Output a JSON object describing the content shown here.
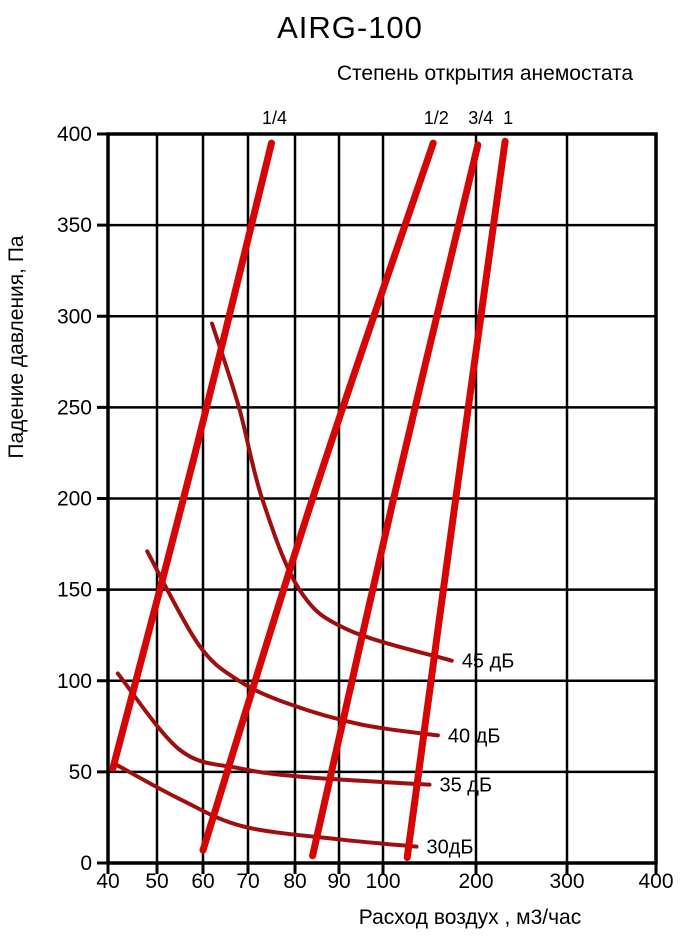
{
  "header": {
    "title": "AIRG-100",
    "subtitle": "Степень открытия анемостата"
  },
  "chart_data": {
    "type": "line",
    "title": "AIRG-100",
    "subtitle": "Степень открытия анемостата",
    "xlabel": "Расход воздух , м3/час",
    "ylabel": "Падение давления, Па",
    "x_scale": "pseudo-log",
    "x_ticks": [
      40,
      50,
      60,
      70,
      80,
      90,
      100,
      200,
      300,
      400
    ],
    "y_ticks": [
      0,
      50,
      100,
      150,
      200,
      250,
      300,
      350,
      400
    ],
    "xlim": [
      40,
      400
    ],
    "ylim": [
      0,
      400
    ],
    "grid": true,
    "colors": {
      "grid": "#000000",
      "opening_lines": "#d60606",
      "noise_curves": "#9e1010"
    },
    "opening_series": [
      {
        "label": "1/4",
        "points": [
          [
            41,
            52
          ],
          [
            58,
            222
          ],
          [
            75,
            395
          ]
        ]
      },
      {
        "label": "1/2",
        "points": [
          [
            60,
            7
          ],
          [
            84,
            200
          ],
          [
            154,
            395
          ]
        ]
      },
      {
        "label": "3/4",
        "points": [
          [
            84,
            4
          ],
          [
            111,
            199
          ],
          [
            202,
            394
          ]
        ]
      },
      {
        "label": "1",
        "points": [
          [
            126,
            3
          ],
          [
            178,
            199
          ],
          [
            232,
            396
          ]
        ]
      }
    ],
    "noise_series": [
      {
        "label": "45 дБ",
        "points": [
          [
            62,
            296
          ],
          [
            68,
            250
          ],
          [
            73,
            200
          ],
          [
            81,
            150
          ],
          [
            92,
            128
          ],
          [
            174,
            111
          ]
        ]
      },
      {
        "label": "40 дБ",
        "points": [
          [
            48,
            171
          ],
          [
            59,
            120
          ],
          [
            68,
            100
          ],
          [
            79,
            87
          ],
          [
            95,
            76
          ],
          [
            159,
            70
          ]
        ]
      },
      {
        "label": "35 дБ",
        "points": [
          [
            42,
            104
          ],
          [
            55,
            62
          ],
          [
            68,
            52
          ],
          [
            83,
            47
          ],
          [
            150,
            43
          ]
        ]
      },
      {
        "label": "30дБ",
        "points": [
          [
            41,
            55
          ],
          [
            55,
            35
          ],
          [
            69,
            20
          ],
          [
            90,
            13
          ],
          [
            136,
            9
          ]
        ]
      }
    ]
  }
}
